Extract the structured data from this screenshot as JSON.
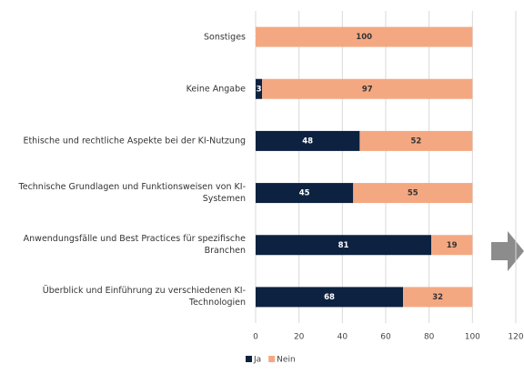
{
  "chart_data": {
    "type": "stacked-barh",
    "categories": [
      "Sonstiges",
      "Keine Angabe",
      "Ethische und rechtliche Aspekte bei der KI-Nutzung",
      "Technische Grundlagen und Funktionsweisen von KI-Systemen",
      "Anwendungsfälle und Best Practices für spezifische Branchen",
      "Überblick und Einführung zu verschiedenen KI-Technologien"
    ],
    "series": [
      {
        "name": "Ja",
        "color": "#0d2240",
        "label_color": "#ffffff",
        "values": [
          0,
          3,
          48,
          45,
          81,
          68
        ]
      },
      {
        "name": "Nein",
        "color": "#f4a882",
        "label_color": "#333333",
        "values": [
          100,
          97,
          52,
          55,
          19,
          32
        ]
      }
    ],
    "xlim": [
      0,
      120
    ],
    "xticks": [
      0,
      20,
      40,
      60,
      80,
      100,
      120
    ],
    "grid": true,
    "legend": "bottom"
  }
}
